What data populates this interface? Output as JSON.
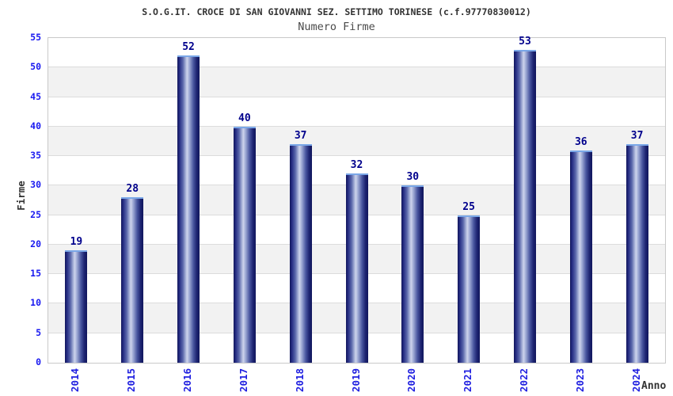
{
  "chart_data": {
    "type": "bar",
    "title": "S.O.G.IT. CROCE DI SAN GIOVANNI SEZ. SETTIMO TORINESE (c.f.97770830012)",
    "subtitle": "Numero Firme",
    "xlabel": "Anno",
    "ylabel": "Firme",
    "categories": [
      "2014",
      "2015",
      "2016",
      "2017",
      "2018",
      "2019",
      "2020",
      "2021",
      "2022",
      "2023",
      "2024"
    ],
    "values": [
      19,
      28,
      52,
      40,
      37,
      32,
      30,
      25,
      53,
      36,
      37
    ],
    "ylim": [
      0,
      55
    ],
    "ytick_step": 5,
    "yticks": [
      0,
      5,
      10,
      15,
      20,
      25,
      30,
      35,
      40,
      45,
      50,
      55
    ],
    "legend": null,
    "grid": "horizontal-bands",
    "colors": {
      "bar_edge": "#11165c",
      "bar_mid": "#cdd4ec",
      "bar_top_highlight": "#7aa7e8",
      "data_label": "#00008c",
      "y_tick_label": "#1a1af0",
      "x_tick_label": "#1e1ee0",
      "axis_title": "#333333",
      "title": "#333333",
      "subtitle": "#4a4a4a",
      "band": "#f2f2f2",
      "gridline": "#dcdcdc",
      "plot_border": "#c9c9c9",
      "background": "#ffffff"
    }
  }
}
